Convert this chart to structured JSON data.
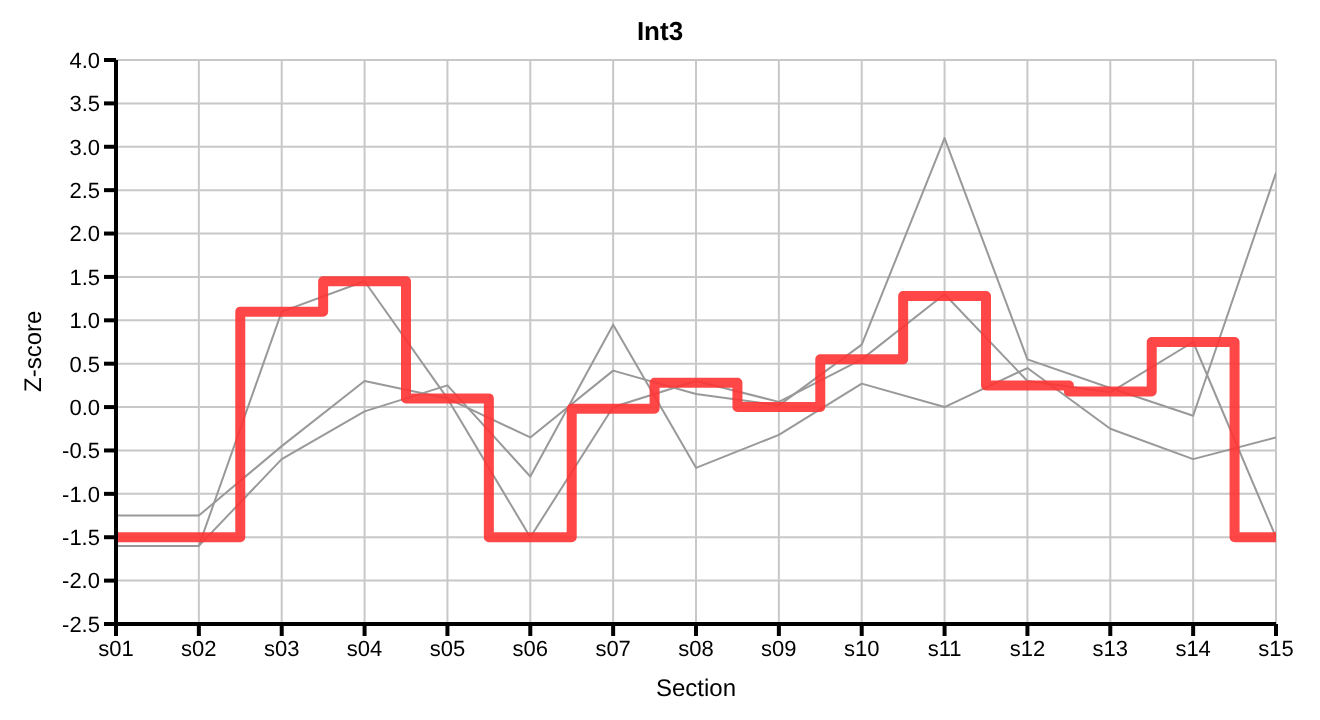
{
  "chart_data": {
    "type": "line",
    "title": "Int3",
    "xlabel": "Section",
    "ylabel": "Z-score",
    "categories": [
      "s01",
      "s02",
      "s03",
      "s04",
      "s05",
      "s06",
      "s07",
      "s08",
      "s09",
      "s10",
      "s11",
      "s12",
      "s13",
      "s14",
      "s15"
    ],
    "series": [
      {
        "color": "#999999",
        "values": [
          -1.25,
          -1.25,
          -0.45,
          0.3,
          0.1,
          -0.35,
          0.42,
          0.15,
          0.02,
          0.72,
          3.1,
          0.55,
          0.22,
          -0.1,
          2.7
        ]
      },
      {
        "color": "#999999",
        "values": [
          -1.6,
          -1.6,
          1.1,
          1.45,
          0.1,
          -1.5,
          0.0,
          0.3,
          0.06,
          0.55,
          1.3,
          0.3,
          0.17,
          0.75,
          -1.5
        ]
      },
      {
        "color": "#999999",
        "values": [
          -1.6,
          -1.6,
          -0.6,
          -0.05,
          0.25,
          -0.8,
          0.95,
          -0.7,
          -0.32,
          0.27,
          0.0,
          0.45,
          -0.25,
          -0.6,
          -0.35
        ]
      },
      {
        "type": "step",
        "color": "#ff3333",
        "values": [
          -1.5,
          -1.5,
          1.1,
          1.45,
          0.1,
          -1.5,
          -0.02,
          0.28,
          0.0,
          0.55,
          1.28,
          0.25,
          0.18,
          0.75,
          -1.5
        ]
      }
    ],
    "ylim": [
      -2.5,
      4.0
    ],
    "yticks": [
      -2.5,
      {
        "value": -2,
        "label": "-2.0"
      },
      -1.5,
      {
        "value": -1,
        "label": "-1.0"
      },
      -0.5,
      {
        "value": 0,
        "label": "0.0"
      },
      0.5,
      {
        "value": 1,
        "label": "1.0"
      },
      1.5,
      {
        "value": 2,
        "label": "2.0"
      },
      2.5,
      {
        "value": 3,
        "label": "3.0"
      },
      3.5,
      {
        "value": 4,
        "label": "4.0"
      }
    ],
    "grid": true,
    "legend": false,
    "marker": "none",
    "line_style": "solid"
  }
}
